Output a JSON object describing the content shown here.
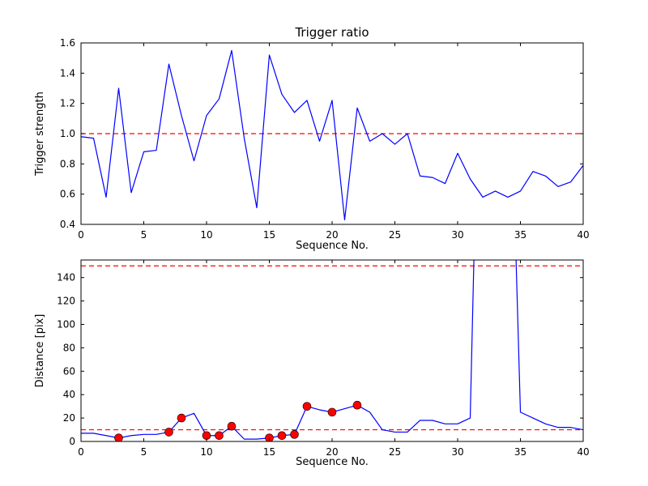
{
  "figure": {
    "background": "#ffffff",
    "frame_color": "#000000",
    "tick_color": "#000000"
  },
  "chart_data": [
    {
      "type": "line",
      "title": "Trigger ratio",
      "xlabel": "Sequence No.",
      "ylabel": "Trigger strength",
      "xlim": [
        0,
        40
      ],
      "ylim": [
        0.4,
        1.6
      ],
      "grid": false,
      "legend": "none",
      "xticks": [
        0,
        5,
        10,
        15,
        20,
        25,
        30,
        35,
        40
      ],
      "xtick_labels": [
        "0",
        "5",
        "10",
        "15",
        "20",
        "25",
        "30",
        "35",
        "40"
      ],
      "yticks": [
        0.4,
        0.6,
        0.8,
        1.0,
        1.2,
        1.4,
        1.6
      ],
      "ytick_labels": [
        "0.4",
        "0.6",
        "0.8",
        "1.0",
        "1.2",
        "1.4",
        "1.6"
      ],
      "line_color": "#0000ff",
      "threshold_color": "#ff0000",
      "threshold_style": "dashed",
      "thresholds": [
        1.0
      ],
      "x": [
        0,
        1,
        2,
        3,
        4,
        5,
        6,
        7,
        8,
        9,
        10,
        11,
        12,
        13,
        14,
        15,
        16,
        17,
        18,
        19,
        20,
        21,
        22,
        23,
        24,
        25,
        26,
        27,
        28,
        29,
        30,
        31,
        32,
        33,
        34,
        35,
        36,
        37,
        38,
        39,
        40
      ],
      "values": [
        0.98,
        0.97,
        0.58,
        1.3,
        0.61,
        0.88,
        0.89,
        1.46,
        1.12,
        0.82,
        1.12,
        1.23,
        1.55,
        0.97,
        0.51,
        1.52,
        1.26,
        1.14,
        1.22,
        0.95,
        1.22,
        0.43,
        1.17,
        0.95,
        1.0,
        0.93,
        1.0,
        0.72,
        0.71,
        0.67,
        0.87,
        0.7,
        0.58,
        0.62,
        0.58,
        0.62,
        0.75,
        0.72,
        0.65,
        0.68,
        0.79
      ],
      "markers": []
    },
    {
      "type": "line",
      "title": "",
      "xlabel": "Sequence No.",
      "ylabel": "Distance [pix]",
      "xlim": [
        0,
        40
      ],
      "ylim": [
        0,
        155
      ],
      "grid": false,
      "legend": "none",
      "xticks": [
        0,
        5,
        10,
        15,
        20,
        25,
        30,
        35,
        40
      ],
      "xtick_labels": [
        "0",
        "5",
        "10",
        "15",
        "20",
        "25",
        "30",
        "35",
        "40"
      ],
      "yticks": [
        0,
        20,
        40,
        60,
        80,
        100,
        120,
        140
      ],
      "ytick_labels": [
        "0",
        "20",
        "40",
        "60",
        "80",
        "100",
        "120",
        "140"
      ],
      "line_color": "#0000ff",
      "threshold_color": "#ff0000",
      "threshold_style": "dashed",
      "thresholds": [
        150,
        10
      ],
      "marker_color": "#ff0000",
      "x": [
        0,
        1,
        2,
        3,
        4,
        5,
        6,
        7,
        8,
        9,
        10,
        11,
        12,
        13,
        14,
        15,
        16,
        17,
        18,
        19,
        20,
        21,
        22,
        23,
        24,
        25,
        26,
        27,
        28,
        29,
        30,
        31,
        32,
        33,
        34,
        35,
        36,
        37,
        38,
        39,
        40
      ],
      "values": [
        7,
        7,
        5,
        3,
        5,
        6,
        6,
        8,
        20,
        24,
        5,
        5,
        13,
        2,
        2,
        3,
        5,
        6,
        30,
        27,
        25,
        28,
        31,
        25,
        10,
        8,
        8,
        18,
        18,
        15,
        15,
        20,
        480,
        500,
        400,
        25,
        20,
        15,
        12,
        12,
        10
      ],
      "markers": [
        [
          3,
          3
        ],
        [
          7,
          8
        ],
        [
          8,
          20
        ],
        [
          10,
          5
        ],
        [
          11,
          5
        ],
        [
          12,
          13
        ],
        [
          15,
          3
        ],
        [
          16,
          5
        ],
        [
          17,
          6
        ],
        [
          18,
          30
        ],
        [
          20,
          25
        ],
        [
          22,
          31
        ]
      ]
    }
  ]
}
